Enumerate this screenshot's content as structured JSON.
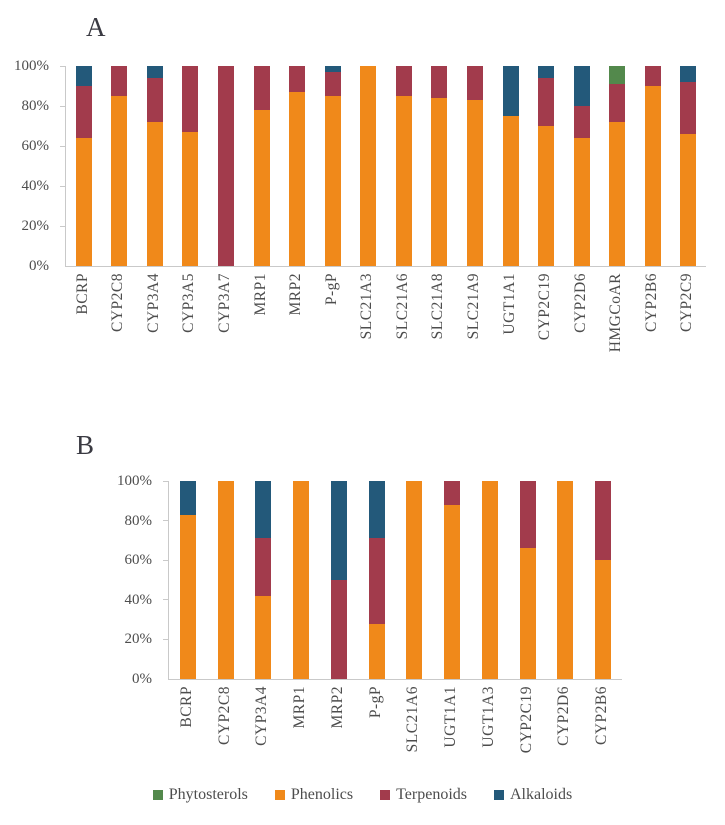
{
  "panels": {
    "a_label": "A",
    "b_label": "B"
  },
  "colors": {
    "phytosterols": "#53894C",
    "phenolics": "#F0891A",
    "terpenoids": "#A23B4C",
    "alkaloids": "#23597A",
    "axis_line": "#C9C9C9",
    "label_text": "#4D4D4D",
    "panel_label_text": "#3A3A42",
    "background": "#FFFFFF"
  },
  "legend": {
    "items": [
      {
        "label": "Phytosterols",
        "color_key": "phytosterols"
      },
      {
        "label": "Phenolics",
        "color_key": "phenolics"
      },
      {
        "label": "Terpenoids",
        "color_key": "terpenoids"
      },
      {
        "label": "Alkaloids",
        "color_key": "alkaloids"
      }
    ]
  },
  "chart_data": [
    {
      "type": "bar",
      "stacked": true,
      "panel": "A",
      "unit": "percent",
      "ylim": [
        0,
        100
      ],
      "yticks": [
        "0%",
        "20%",
        "40%",
        "60%",
        "80%",
        "100%"
      ],
      "grid": false,
      "legend_position": "bottom-shared",
      "categories": [
        "BCRP",
        "CYP2C8",
        "CYP3A4",
        "CYP3A5",
        "CYP3A7",
        "MRP1",
        "MRP2",
        "P-gP",
        "SLC21A3",
        "SLC21A6",
        "SLC21A8",
        "SLC21A9",
        "UGT1A1",
        "CYP2C19",
        "CYP2D6",
        "HMGCoAR",
        "CYP2B6",
        "CYP2C9"
      ],
      "series": [
        {
          "name": "Phytosterols",
          "key": "phytosterols",
          "values": [
            0,
            0,
            0,
            0,
            0,
            0,
            0,
            0,
            0,
            0,
            0,
            0,
            0,
            0,
            0,
            9,
            0,
            0
          ]
        },
        {
          "name": "Phenolics",
          "key": "phenolics",
          "values": [
            64,
            85,
            72,
            67,
            0,
            78,
            87,
            85,
            100,
            85,
            84,
            83,
            75,
            70,
            64,
            72,
            90,
            66
          ]
        },
        {
          "name": "Terpenoids",
          "key": "terpenoids",
          "values": [
            26,
            15,
            22,
            33,
            100,
            22,
            13,
            12,
            0,
            15,
            16,
            17,
            0,
            24,
            16,
            19,
            10,
            26
          ]
        },
        {
          "name": "Alkaloids",
          "key": "alkaloids",
          "values": [
            10,
            0,
            6,
            0,
            0,
            0,
            0,
            3,
            0,
            0,
            0,
            0,
            25,
            6,
            20,
            0,
            0,
            8
          ]
        }
      ]
    },
    {
      "type": "bar",
      "stacked": true,
      "panel": "B",
      "unit": "percent",
      "ylim": [
        0,
        100
      ],
      "yticks": [
        "0%",
        "20%",
        "40%",
        "60%",
        "80%",
        "100%"
      ],
      "grid": false,
      "legend_position": "bottom-shared",
      "categories": [
        "BCRP",
        "CYP2C8",
        "CYP3A4",
        "MRP1",
        "MRP2",
        "P-gP",
        "SLC21A6",
        "UGT1A1",
        "UGT1A3",
        "CYP2C19",
        "CYP2D6",
        "CYP2B6"
      ],
      "series": [
        {
          "name": "Phytosterols",
          "key": "phytosterols",
          "values": [
            0,
            0,
            0,
            0,
            0,
            0,
            0,
            0,
            0,
            0,
            0,
            0
          ]
        },
        {
          "name": "Phenolics",
          "key": "phenolics",
          "values": [
            83,
            100,
            42,
            100,
            0,
            28,
            100,
            88,
            100,
            66,
            100,
            60
          ]
        },
        {
          "name": "Terpenoids",
          "key": "terpenoids",
          "values": [
            0,
            0,
            29,
            0,
            50,
            43,
            0,
            12,
            0,
            34,
            0,
            40
          ]
        },
        {
          "name": "Alkaloids",
          "key": "alkaloids",
          "values": [
            17,
            0,
            29,
            0,
            50,
            29,
            0,
            0,
            0,
            0,
            0,
            0
          ]
        }
      ]
    }
  ]
}
